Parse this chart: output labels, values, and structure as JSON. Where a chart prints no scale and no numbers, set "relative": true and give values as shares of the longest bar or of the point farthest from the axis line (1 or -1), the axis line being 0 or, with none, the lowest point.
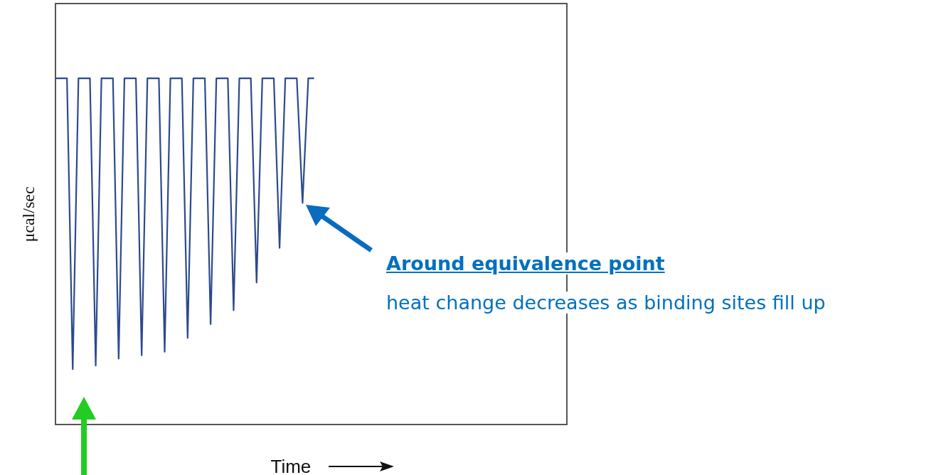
{
  "chart_data": {
    "type": "line",
    "relative": true,
    "xlabel": "Time",
    "ylabel": "μcal/sec",
    "color": "#2c4a8c",
    "categories": [
      null,
      null,
      null,
      null,
      null,
      null,
      null,
      null,
      null,
      null,
      null,
      null,
      null,
      null,
      null,
      null,
      null,
      null,
      null,
      null,
      null,
      null,
      null,
      null,
      null,
      null,
      null,
      null,
      null,
      null,
      null,
      null,
      null,
      null,
      null,
      null,
      null,
      null,
      null,
      null,
      null,
      null,
      null,
      null,
      null,
      null,
      null,
      null,
      null,
      null,
      null,
      null,
      null,
      null,
      null,
      null,
      null,
      null,
      null,
      null,
      null,
      null,
      null,
      null,
      null,
      null,
      null,
      null,
      null,
      null,
      null,
      null,
      null,
      null,
      null,
      null,
      null,
      null,
      null,
      null,
      null,
      null,
      null,
      null,
      null,
      null,
      null,
      null,
      null,
      null
    ],
    "values": [
      1,
      1,
      1,
      0.16,
      1,
      1,
      1,
      0.17,
      1,
      1,
      1,
      0.19,
      1,
      1,
      1,
      0.2,
      1,
      1,
      1,
      0.21,
      1,
      1,
      1,
      0.25,
      1,
      1,
      1,
      0.29,
      1,
      1,
      1,
      0.33,
      1,
      1,
      1,
      0.41,
      1,
      1,
      1,
      0.51,
      1,
      1,
      1,
      0.64,
      1,
      1,
      null,
      null,
      null,
      null,
      null,
      null,
      null,
      null,
      null,
      null,
      null,
      null,
      null,
      null,
      null,
      null,
      null,
      null,
      null,
      null,
      null,
      null,
      null,
      null,
      null,
      null,
      null,
      null,
      null,
      null,
      null,
      null,
      null,
      null,
      null,
      null,
      null,
      null,
      null,
      null,
      null,
      null,
      null,
      null
    ],
    "annotations": [
      "Around equivalence point",
      "heat change decreases as binding sites fill up"
    ]
  }
}
